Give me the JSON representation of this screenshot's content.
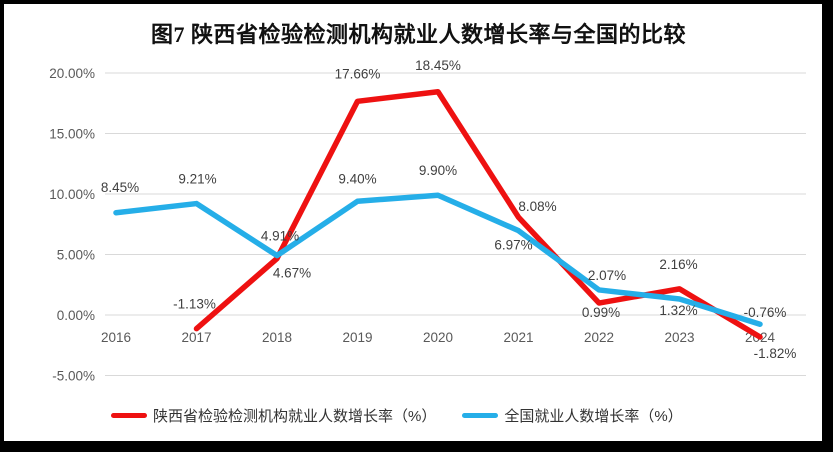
{
  "title": "图7 陕西省检验检测机构就业人数增长率与全国的比较",
  "chart_data": {
    "type": "line",
    "title": "图7 陕西省检验检测机构就业人数增长率与全国的比较",
    "categories": [
      "2016",
      "2017",
      "2018",
      "2019",
      "2020",
      "2021",
      "2022",
      "2023",
      "2024"
    ],
    "series": [
      {
        "name": "陕西省检验检测机构就业人数增长率（%）",
        "color": "#ee1111",
        "values": [
          null,
          -1.13,
          4.67,
          17.66,
          18.45,
          8.08,
          0.99,
          2.16,
          -1.82
        ],
        "labels": [
          "",
          "-1.13%",
          "4.67%",
          "17.66%",
          "18.45%",
          "8.08%",
          "0.99%",
          "2.16%",
          "-1.82%"
        ]
      },
      {
        "name": "全国就业人数增长率（%）",
        "color": "#25aee8",
        "values": [
          8.45,
          9.21,
          4.91,
          9.4,
          9.9,
          6.97,
          2.07,
          1.32,
          -0.76
        ],
        "labels": [
          "8.45%",
          "9.21%",
          "4.91%",
          "9.40%",
          "9.90%",
          "6.97%",
          "2.07%",
          "1.32%",
          "-0.76%"
        ]
      }
    ],
    "y_ticks": [
      {
        "label": "20.00%",
        "value": 20
      },
      {
        "label": "15.00%",
        "value": 15
      },
      {
        "label": "10.00%",
        "value": 10
      },
      {
        "label": "5.00%",
        "value": 5
      },
      {
        "label": "0.00%",
        "value": 0
      },
      {
        "label": "-5.00%",
        "value": -5
      }
    ],
    "ylim": [
      -5,
      20
    ],
    "grid": true,
    "gridline_color": "#d9d9d9",
    "axis_text_color": "#595959",
    "label_text_color": "#3f3f3f",
    "legend_position": "bottom"
  }
}
